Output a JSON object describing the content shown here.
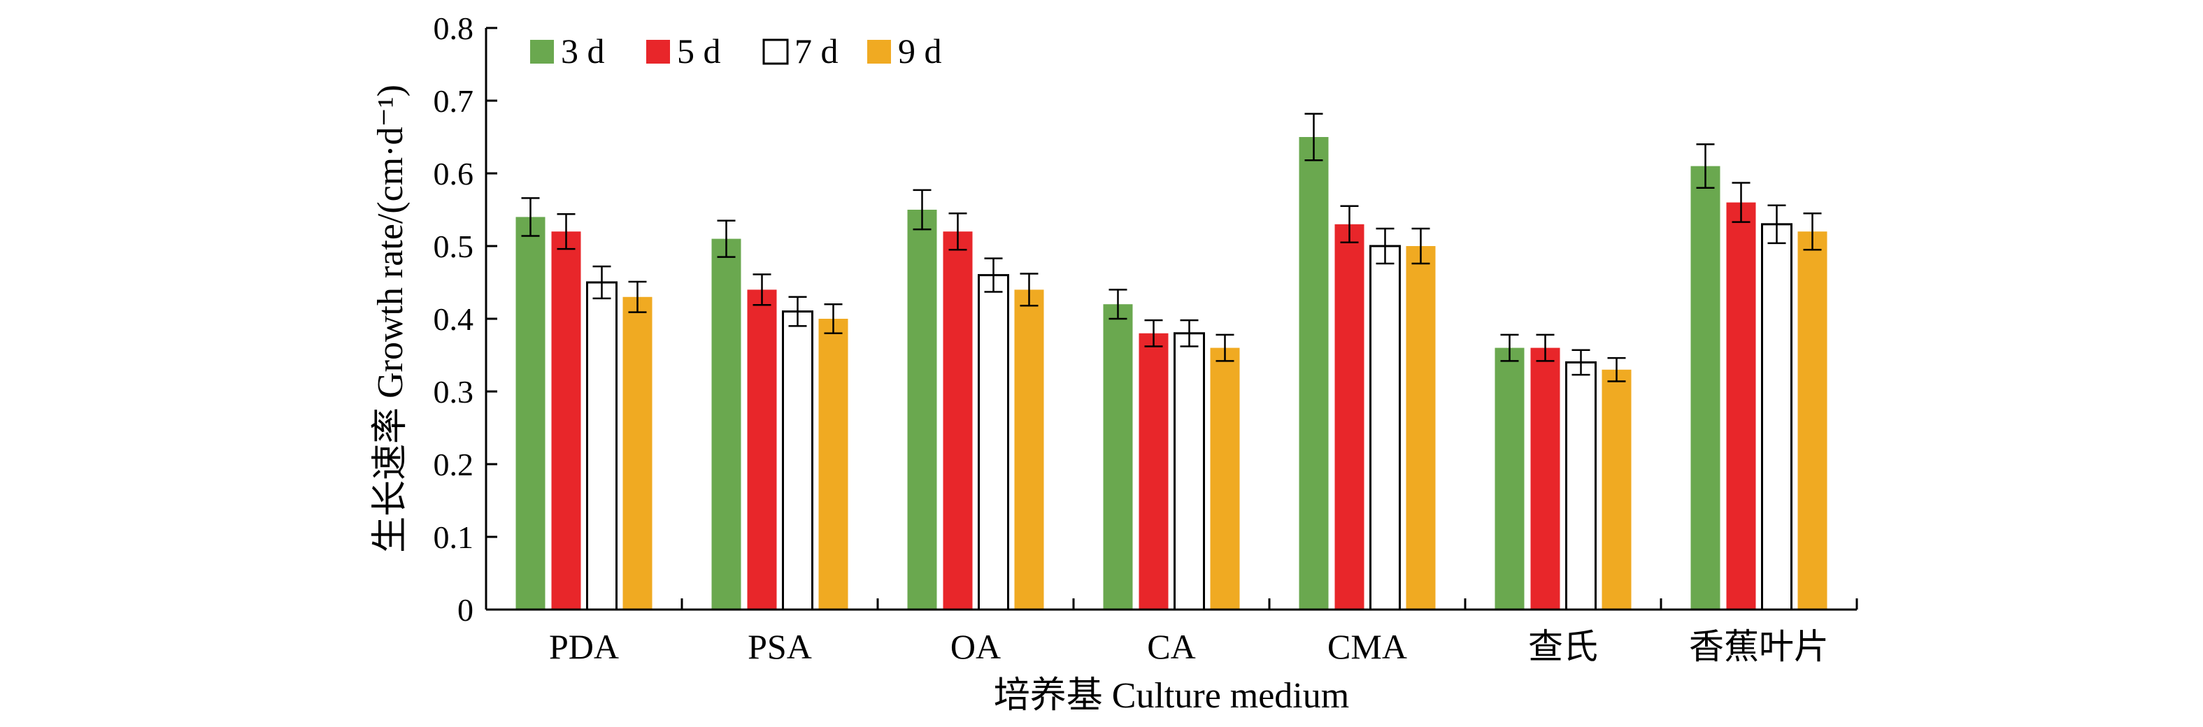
{
  "chart_data": {
    "type": "bar",
    "title": "",
    "xlabel": "培养基 Culture medium",
    "ylabel": "生长速率 Growth rate/(cm·d⁻¹)",
    "ylim": [
      0,
      0.8
    ],
    "yticks": [
      "0",
      "0.1",
      "0.2",
      "0.3",
      "0.4",
      "0.5",
      "0.6",
      "0.7",
      "0.8"
    ],
    "categories": [
      "PDA",
      "PSA",
      "OA",
      "CA",
      "CMA",
      "查氏",
      "香蕉叶片"
    ],
    "legend_position": "top-left",
    "grid": false,
    "series": [
      {
        "name": "3 d",
        "color": "#6aa84f",
        "values": [
          0.54,
          0.51,
          0.55,
          0.42,
          0.65,
          0.36,
          0.61
        ],
        "errors": [
          0.026,
          0.025,
          0.027,
          0.02,
          0.032,
          0.018,
          0.03
        ]
      },
      {
        "name": "5 d",
        "color": "#e8262a",
        "values": [
          0.52,
          0.44,
          0.52,
          0.38,
          0.53,
          0.36,
          0.56
        ],
        "errors": [
          0.024,
          0.021,
          0.025,
          0.018,
          0.025,
          0.018,
          0.027
        ]
      },
      {
        "name": "7 d",
        "color": "#ffffff",
        "values": [
          0.45,
          0.41,
          0.46,
          0.38,
          0.5,
          0.34,
          0.53
        ],
        "errors": [
          0.022,
          0.02,
          0.023,
          0.018,
          0.024,
          0.017,
          0.026
        ]
      },
      {
        "name": "9 d",
        "color": "#f0aa22",
        "values": [
          0.43,
          0.4,
          0.44,
          0.36,
          0.5,
          0.33,
          0.52
        ],
        "errors": [
          0.021,
          0.02,
          0.022,
          0.018,
          0.024,
          0.016,
          0.025
        ]
      }
    ]
  }
}
